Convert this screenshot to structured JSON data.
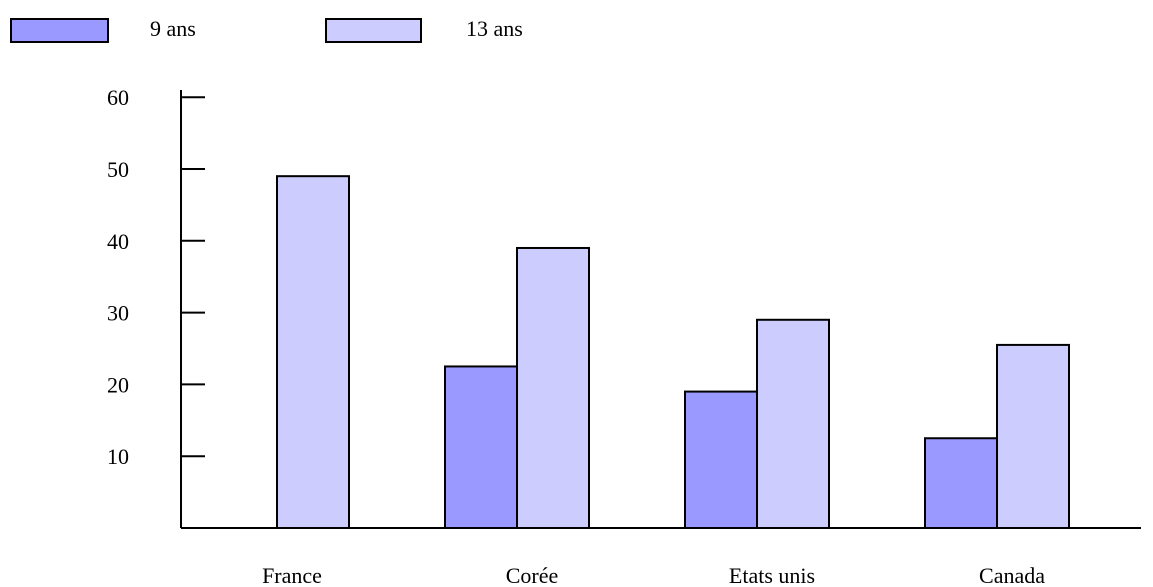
{
  "chart_data": {
    "type": "bar",
    "categories": [
      "France",
      "Corée",
      "Etats unis",
      "Canada"
    ],
    "series": [
      {
        "name": "9 ans",
        "values": [
          null,
          22.5,
          19,
          12.5
        ],
        "color": "#9999ff"
      },
      {
        "name": "13 ans",
        "values": [
          49,
          39,
          29,
          25.5
        ],
        "color": "#ccccff"
      }
    ],
    "yticks": [
      10,
      20,
      30,
      40,
      50,
      60
    ],
    "ylim": [
      0,
      60
    ],
    "legend": "top-left",
    "grid": false
  }
}
